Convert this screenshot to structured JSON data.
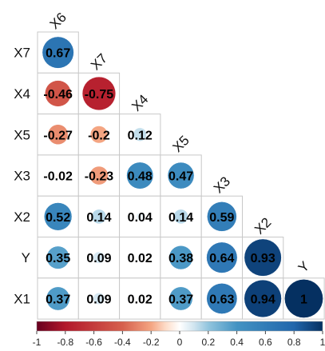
{
  "chart_data": {
    "type": "heatmap",
    "style": "lower-triangle correlogram with circles",
    "row_labels": [
      "X7",
      "X4",
      "X5",
      "X3",
      "X2",
      "Y",
      "X1"
    ],
    "col_labels": [
      "X6",
      "X7",
      "X4",
      "X5",
      "X3",
      "X2",
      "Y"
    ],
    "values": [
      [
        0.67
      ],
      [
        -0.46,
        -0.75
      ],
      [
        -0.27,
        -0.2,
        0.12
      ],
      [
        -0.02,
        -0.23,
        0.48,
        0.47
      ],
      [
        0.52,
        0.14,
        0.04,
        0.14,
        0.59
      ],
      [
        0.35,
        0.09,
        0.02,
        0.38,
        0.64,
        0.93
      ],
      [
        0.37,
        0.09,
        0.02,
        0.37,
        0.63,
        0.94,
        1
      ]
    ],
    "value_labels": [
      [
        "0.67"
      ],
      [
        "-0.46",
        "-0.75"
      ],
      [
        "-0.27",
        "-0.2",
        "0.12"
      ],
      [
        "-0.02",
        "-0.23",
        "0.48",
        "0.47"
      ],
      [
        "0.52",
        "0.14",
        "0.04",
        "0.14",
        "0.59"
      ],
      [
        "0.35",
        "0.09",
        "0.02",
        "0.38",
        "0.64",
        "0.93"
      ],
      [
        "0.37",
        "0.09",
        "0.02",
        "0.37",
        "0.63",
        "0.94",
        "1"
      ]
    ],
    "colorbar": {
      "range": [
        -1,
        1
      ],
      "ticks": [
        "-1",
        "-0.8",
        "-0.6",
        "-0.4",
        "-0.2",
        "0",
        "0.2",
        "0.4",
        "0.6",
        "0.8",
        "1"
      ],
      "colors": {
        "neg_strong": "#67001f",
        "neg_mid": "#d6604d",
        "neg_light": "#fddbc7",
        "zero": "#ffffff",
        "pos_light": "#d1e5f0",
        "pos_mid": "#4393c3",
        "pos_strong": "#053061"
      },
      "placement": "bottom"
    }
  }
}
